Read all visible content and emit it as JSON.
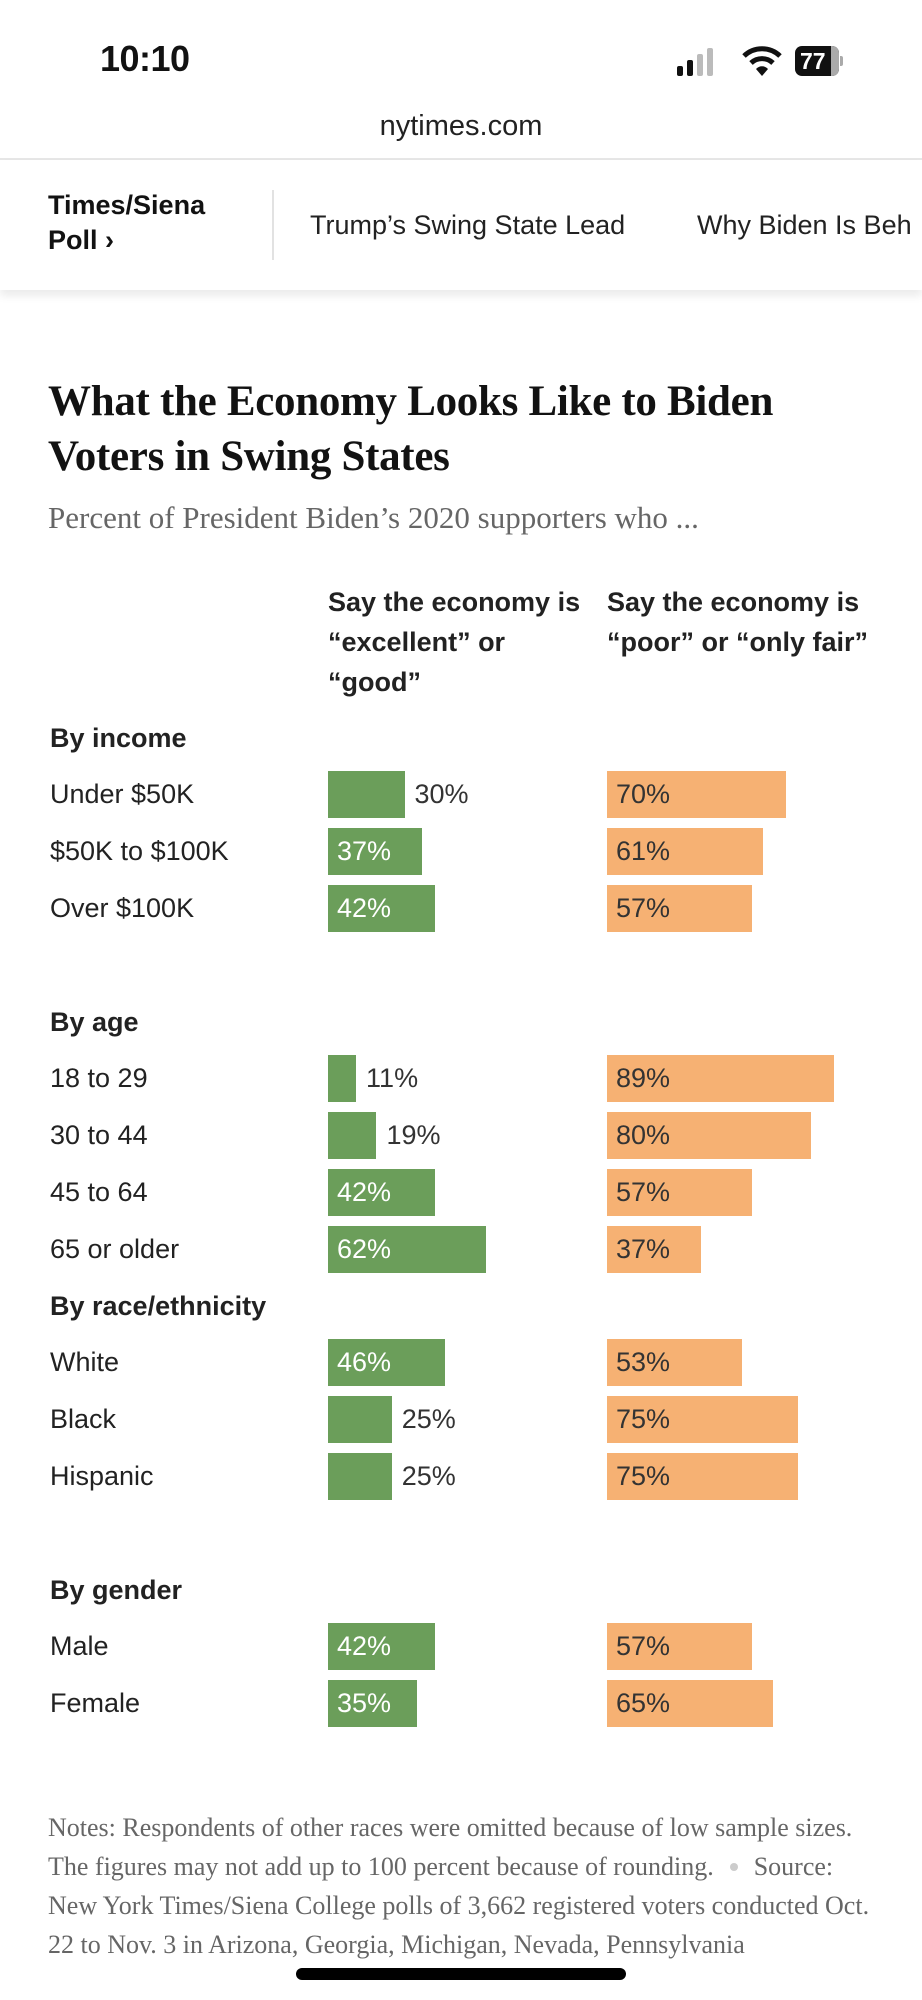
{
  "status_bar": {
    "time": "10:10",
    "battery": "77",
    "icons": [
      "signal-icon",
      "wifi-icon",
      "battery-icon"
    ]
  },
  "browser": {
    "url": "nytimes.com"
  },
  "nav": {
    "section": "Times/Siena Poll ›",
    "links": [
      "Trump’s Swing State Lead",
      "Why Biden Is Beh"
    ]
  },
  "article": {
    "title": "What the Economy Looks Like to Biden Voters in Swing States",
    "subtitle": "Percent of President Biden’s 2020 supporters who ..."
  },
  "chart_data": {
    "type": "bar",
    "title": "What the Economy Looks Like to Biden Voters in Swing States",
    "subtitle": "Percent of President Biden’s 2020 supporters who ...",
    "xlim": [
      0,
      100
    ],
    "grid": false,
    "colors": {
      "good": "#6b9e5a",
      "poor": "#f6b173"
    },
    "series": [
      {
        "name": "Say the economy is “excellent” or “good”",
        "key": "good"
      },
      {
        "name": "Say the economy is “poor” or “only fair”",
        "key": "poor"
      }
    ],
    "groups": [
      {
        "name": "By income",
        "rows": [
          {
            "label": "Under $50K",
            "good": 30,
            "poor": 70
          },
          {
            "label": "$50K to $100K",
            "good": 37,
            "poor": 61
          },
          {
            "label": "Over $100K",
            "good": 42,
            "poor": 57
          }
        ]
      },
      {
        "name": "By age",
        "rows": [
          {
            "label": "18 to 29",
            "good": 11,
            "poor": 89
          },
          {
            "label": "30 to 44",
            "good": 19,
            "poor": 80
          },
          {
            "label": "45 to 64",
            "good": 42,
            "poor": 57
          },
          {
            "label": "65 or older",
            "good": 62,
            "poor": 37
          }
        ]
      },
      {
        "name": "By race/ethnicity",
        "rows": [
          {
            "label": "White",
            "good": 46,
            "poor": 53
          },
          {
            "label": "Black",
            "good": 25,
            "poor": 75
          },
          {
            "label": "Hispanic",
            "good": 25,
            "poor": 75
          }
        ]
      },
      {
        "name": "By gender",
        "rows": [
          {
            "label": "Male",
            "good": 42,
            "poor": 57
          },
          {
            "label": "Female",
            "good": 35,
            "poor": 65
          }
        ]
      }
    ]
  },
  "notes": {
    "notes_text": "Notes: Respondents of other races were omitted because of low sample sizes. The figures may not add up to 100 percent because of rounding.",
    "source_text": "Source: New York Times/Siena College polls of 3,662 registered voters conducted Oct. 22 to Nov. 3 in Arizona, Georgia, Michigan, Nevada, Pennsylvania"
  }
}
